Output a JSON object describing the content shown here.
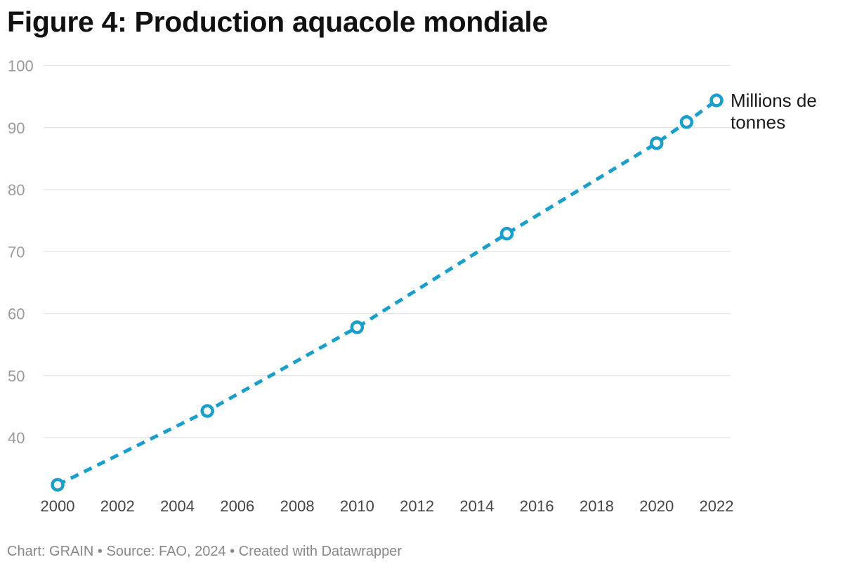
{
  "title": "Figure 4: Production aquacole mondiale",
  "footer": {
    "chart_credit": "Chart: GRAIN",
    "separator": "•",
    "source": "Source: FAO, 2024",
    "created_with": "Created with Datawrapper"
  },
  "colors": {
    "line": "#1a9fcc",
    "grid": "#e2e2e2",
    "marker_fill": "#ffffff"
  },
  "chart_data": {
    "type": "line",
    "title": "Figure 4: Production aquacole mondiale",
    "xlabel": "",
    "ylabel": "",
    "x": [
      2000,
      2005,
      2010,
      2015,
      2020,
      2021,
      2022
    ],
    "series": [
      {
        "name": "Millions de tonnes",
        "label_lines": [
          "Millions de",
          "tonnes"
        ],
        "values": [
          32.4,
          44.3,
          57.8,
          72.9,
          87.5,
          90.9,
          94.4
        ],
        "line_style": "dashed"
      }
    ],
    "xlim": [
      2000,
      2022
    ],
    "ylim": [
      31,
      100
    ],
    "x_ticks": [
      2000,
      2002,
      2004,
      2006,
      2008,
      2010,
      2012,
      2014,
      2016,
      2018,
      2020,
      2022
    ],
    "y_ticks": [
      40,
      50,
      60,
      70,
      80,
      90,
      100
    ],
    "grid": true,
    "legend": "inline-end-label"
  }
}
